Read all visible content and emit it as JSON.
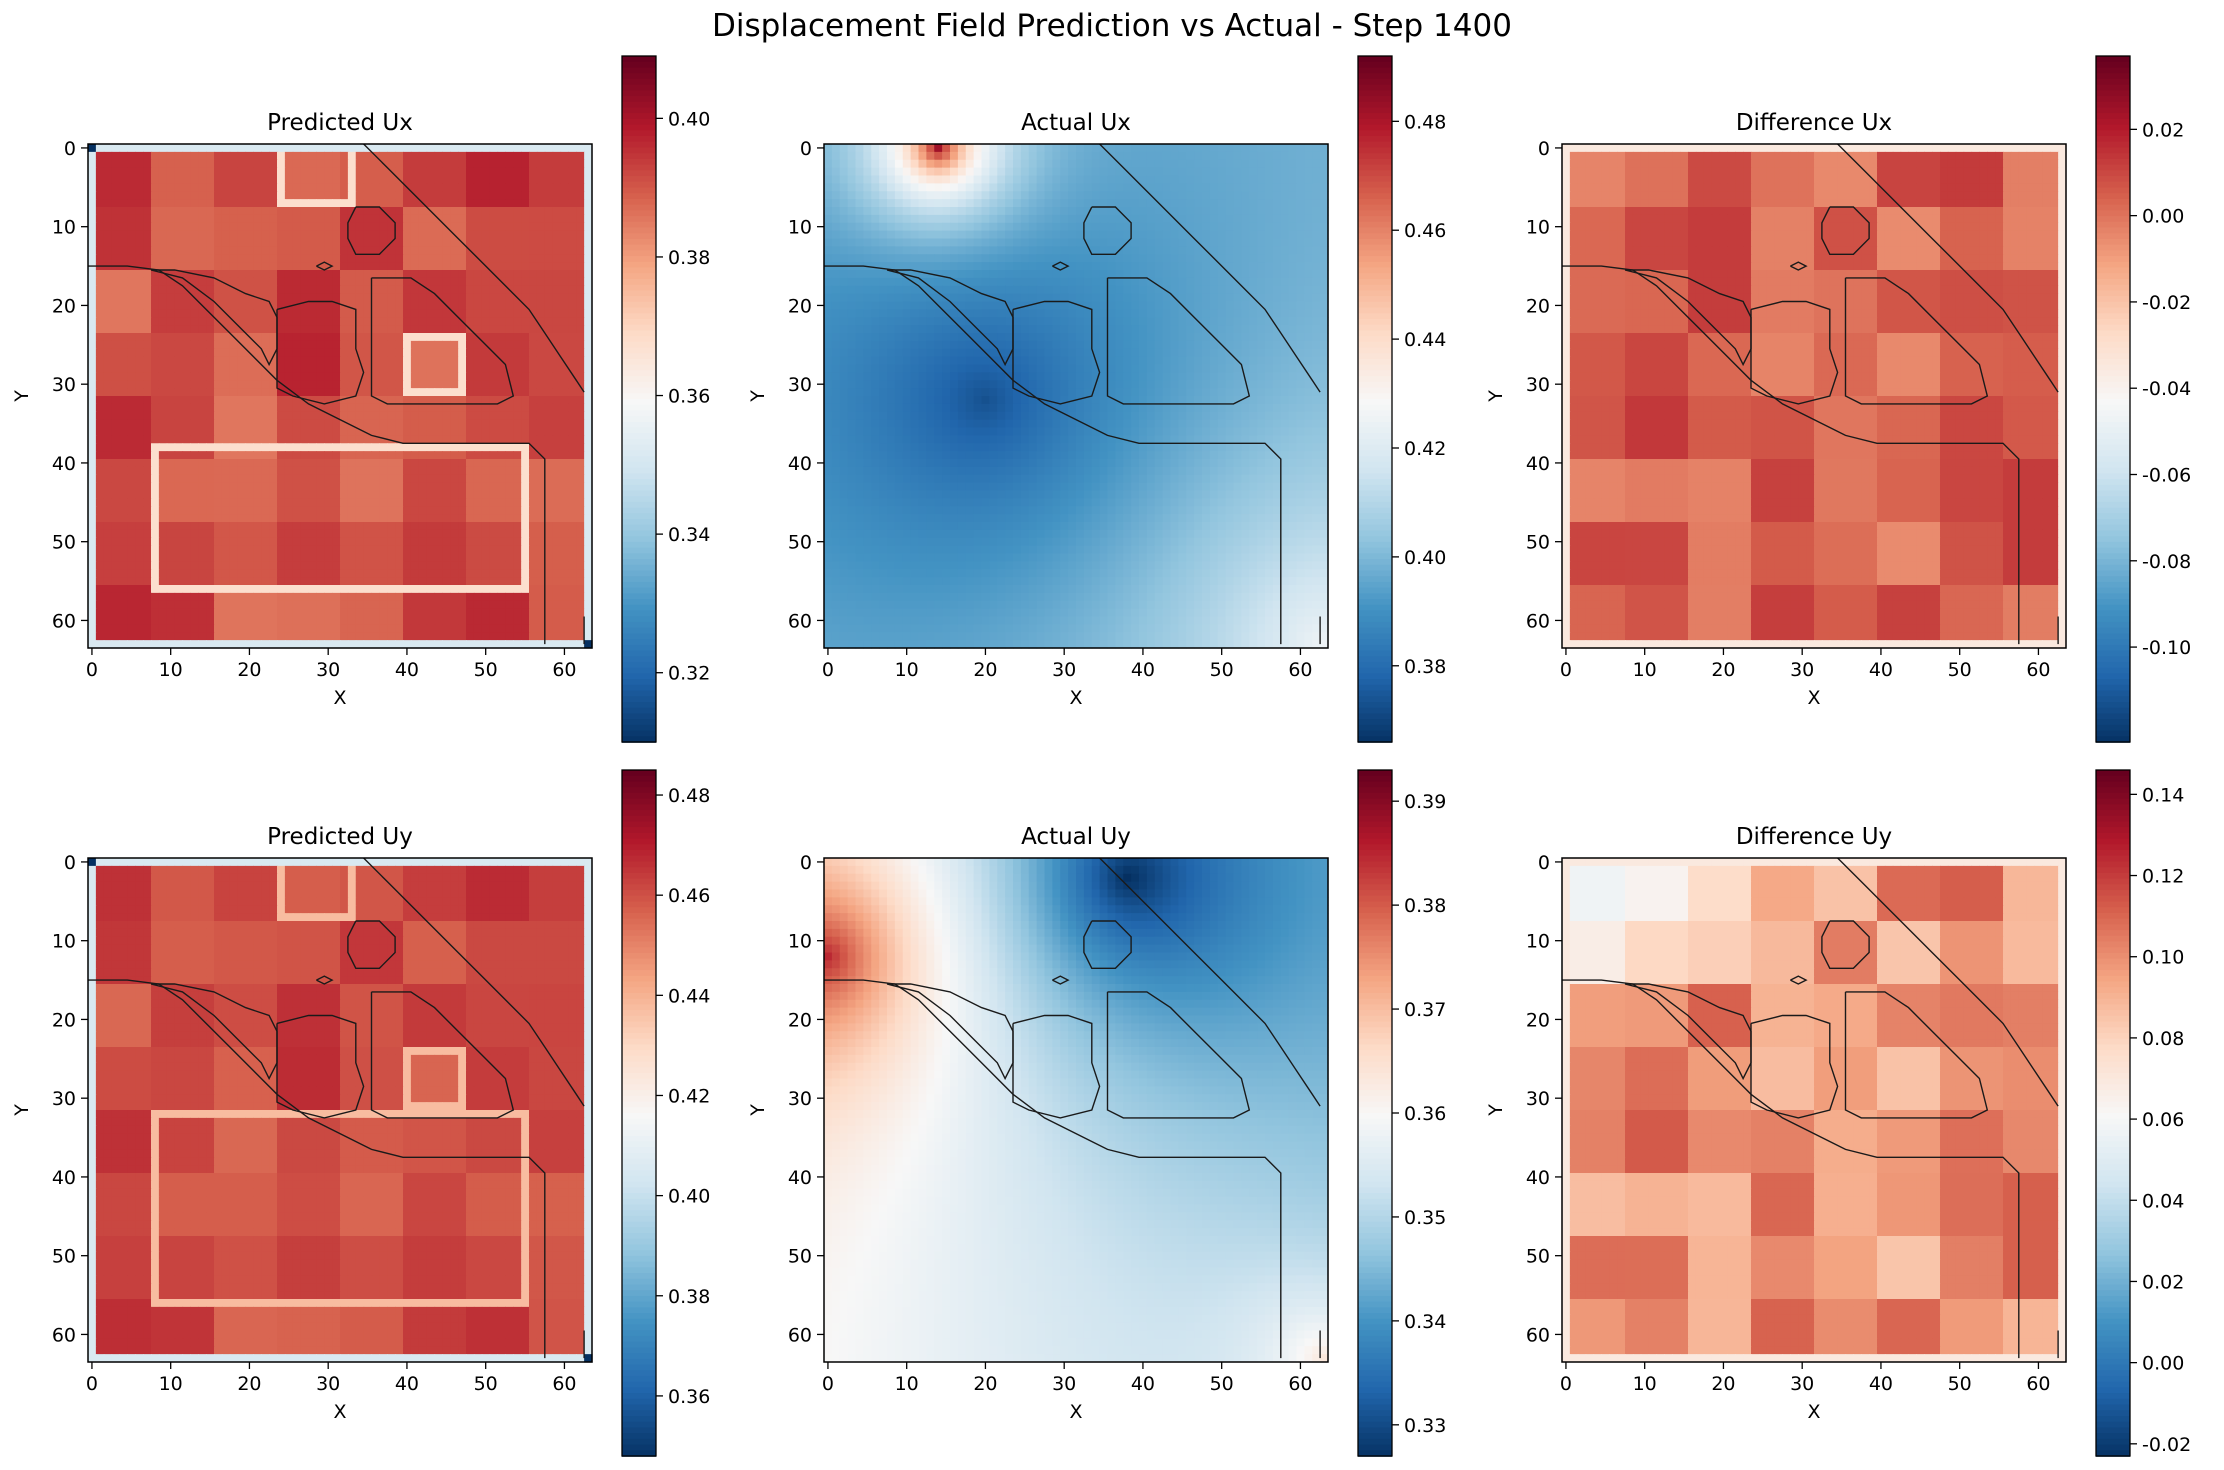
{
  "figure": {
    "suptitle": "Displacement Field Prediction vs Actual - Step 1400"
  },
  "chart_data": [
    {
      "type": "heatmap",
      "title": "Predicted Ux",
      "xlabel": "X",
      "ylabel": "Y",
      "xticks": [
        "0",
        "10",
        "20",
        "30",
        "40",
        "50",
        "60"
      ],
      "yticks": [
        "0",
        "10",
        "20",
        "30",
        "40",
        "50",
        "60"
      ],
      "grid_size": 64,
      "colormap": "RdBu_r",
      "colorbar": {
        "range": [
          0.31,
          0.409
        ],
        "ticks": [
          "0.32",
          "0.34",
          "0.36",
          "0.38",
          "0.40"
        ],
        "tick_values": [
          0.32,
          0.34,
          0.36,
          0.38,
          0.4
        ]
      },
      "field": {
        "pattern": "blocky",
        "base": 0.392,
        "variation": 0.012,
        "light_rects": [
          [
            8,
            38,
            55,
            56
          ],
          [
            24,
            0,
            33,
            7
          ],
          [
            40,
            24,
            47,
            31
          ]
        ],
        "light_value": 0.368
      }
    },
    {
      "type": "heatmap",
      "title": "Actual Ux",
      "xlabel": "X",
      "ylabel": "Y",
      "xticks": [
        "0",
        "10",
        "20",
        "30",
        "40",
        "50",
        "60"
      ],
      "yticks": [
        "0",
        "10",
        "20",
        "30",
        "40",
        "50",
        "60"
      ],
      "grid_size": 64,
      "colormap": "RdBu_r",
      "colorbar": {
        "range": [
          0.366,
          0.492
        ],
        "ticks": [
          "0.38",
          "0.40",
          "0.42",
          "0.44",
          "0.46",
          "0.48"
        ],
        "tick_values": [
          0.38,
          0.4,
          0.42,
          0.44,
          0.46,
          0.48
        ]
      },
      "field": {
        "pattern": "smooth",
        "min_at": [
          20,
          32
        ],
        "min_value": 0.37,
        "high_at": [
          14,
          0
        ],
        "high_value": 0.49,
        "corner_at": [
          63,
          63
        ],
        "corner_value": 0.43
      }
    },
    {
      "type": "heatmap",
      "title": "Difference Ux",
      "xlabel": "X",
      "ylabel": "Y",
      "xticks": [
        "0",
        "10",
        "20",
        "30",
        "40",
        "50",
        "60"
      ],
      "yticks": [
        "0",
        "10",
        "20",
        "30",
        "40",
        "50",
        "60"
      ],
      "grid_size": 64,
      "colormap": "RdBu_r",
      "colorbar": {
        "range": [
          -0.122,
          0.037
        ],
        "ticks": [
          "-0.10",
          "-0.08",
          "-0.06",
          "-0.04",
          "-0.02",
          "0.00",
          "0.02"
        ],
        "tick_values": [
          -0.1,
          -0.08,
          -0.06,
          -0.04,
          -0.02,
          0.0,
          0.02
        ]
      },
      "field": {
        "pattern": "difference",
        "base": 0.005,
        "variation": 0.02
      }
    },
    {
      "type": "heatmap",
      "title": "Predicted Uy",
      "xlabel": "X",
      "ylabel": "Y",
      "xticks": [
        "0",
        "10",
        "20",
        "30",
        "40",
        "50",
        "60"
      ],
      "yticks": [
        "0",
        "10",
        "20",
        "30",
        "40",
        "50",
        "60"
      ],
      "grid_size": 64,
      "colormap": "RdBu_r",
      "colorbar": {
        "range": [
          0.348,
          0.485
        ],
        "ticks": [
          "0.36",
          "0.38",
          "0.40",
          "0.42",
          "0.44",
          "0.46",
          "0.48"
        ],
        "tick_values": [
          0.36,
          0.38,
          0.4,
          0.42,
          0.44,
          0.46,
          0.48
        ]
      },
      "field": {
        "pattern": "blocky",
        "base": 0.462,
        "variation": 0.012,
        "light_rects": [
          [
            8,
            32,
            55,
            56
          ],
          [
            24,
            0,
            33,
            7
          ],
          [
            40,
            24,
            47,
            31
          ]
        ],
        "light_value": 0.438
      }
    },
    {
      "type": "heatmap",
      "title": "Actual Uy",
      "xlabel": "X",
      "ylabel": "Y",
      "xticks": [
        "0",
        "10",
        "20",
        "30",
        "40",
        "50",
        "60"
      ],
      "yticks": [
        "0",
        "10",
        "20",
        "30",
        "40",
        "50",
        "60"
      ],
      "grid_size": 64,
      "colormap": "RdBu_r",
      "colorbar": {
        "range": [
          0.327,
          0.393
        ],
        "ticks": [
          "0.33",
          "0.34",
          "0.35",
          "0.36",
          "0.37",
          "0.38",
          "0.39"
        ],
        "tick_values": [
          0.33,
          0.34,
          0.35,
          0.36,
          0.37,
          0.38,
          0.39
        ]
      },
      "field": {
        "pattern": "smooth_uy",
        "high_at": [
          0,
          12
        ],
        "high_value": 0.39,
        "min_at": [
          38,
          2
        ],
        "min_value": 0.33,
        "corner_at": [
          63,
          63
        ],
        "corner_value": 0.375
      }
    },
    {
      "type": "heatmap",
      "title": "Difference Uy",
      "xlabel": "X",
      "ylabel": "Y",
      "xticks": [
        "0",
        "10",
        "20",
        "30",
        "40",
        "50",
        "60"
      ],
      "yticks": [
        "0",
        "10",
        "20",
        "30",
        "40",
        "50",
        "60"
      ],
      "grid_size": 64,
      "colormap": "RdBu_r",
      "colorbar": {
        "range": [
          -0.023,
          0.146
        ],
        "ticks": [
          "-0.02",
          "0.00",
          "0.02",
          "0.04",
          "0.06",
          "0.08",
          "0.10",
          "0.12",
          "0.14"
        ],
        "tick_values": [
          -0.02,
          0.0,
          0.02,
          0.04,
          0.06,
          0.08,
          0.1,
          0.12,
          0.14
        ]
      },
      "field": {
        "pattern": "difference_uy",
        "base": 0.1,
        "variation": 0.03
      }
    }
  ]
}
